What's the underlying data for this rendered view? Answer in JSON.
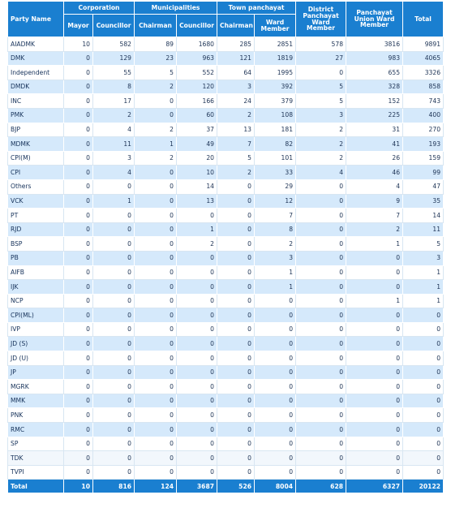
{
  "headers": {
    "party_name": "Party Name",
    "corporation": "Corporation",
    "municipalities": "Municipalities",
    "town_panchayat": "Town panchayat",
    "district_panchayat": "District Panchayat Ward Member",
    "panchayat_union": "Panchayat Union Ward Member",
    "total": "Total",
    "mayor": "Mayor",
    "councillor_corp": "Councillor",
    "chairman_muni": "Chairman",
    "councillor_muni": "Councillor",
    "chairman_town": "Chairman",
    "ward_member_town": "Ward Member"
  },
  "rows": [
    {
      "party": "AIADMK",
      "v": [
        "10",
        "582",
        "89",
        "1680",
        "285",
        "2851",
        "578",
        "3816",
        "9891"
      ]
    },
    {
      "party": "DMK",
      "v": [
        "0",
        "129",
        "23",
        "963",
        "121",
        "1819",
        "27",
        "983",
        "4065"
      ]
    },
    {
      "party": "Independent",
      "v": [
        "0",
        "55",
        "5",
        "552",
        "64",
        "1995",
        "0",
        "655",
        "3326"
      ]
    },
    {
      "party": "DMDK",
      "v": [
        "0",
        "8",
        "2",
        "120",
        "3",
        "392",
        "5",
        "328",
        "858"
      ]
    },
    {
      "party": "INC",
      "v": [
        "0",
        "17",
        "0",
        "166",
        "24",
        "379",
        "5",
        "152",
        "743"
      ]
    },
    {
      "party": "PMK",
      "v": [
        "0",
        "2",
        "0",
        "60",
        "2",
        "108",
        "3",
        "225",
        "400"
      ]
    },
    {
      "party": "BJP",
      "v": [
        "0",
        "4",
        "2",
        "37",
        "13",
        "181",
        "2",
        "31",
        "270"
      ]
    },
    {
      "party": "MDMK",
      "v": [
        "0",
        "11",
        "1",
        "49",
        "7",
        "82",
        "2",
        "41",
        "193"
      ]
    },
    {
      "party": "CPI(M)",
      "v": [
        "0",
        "3",
        "2",
        "20",
        "5",
        "101",
        "2",
        "26",
        "159"
      ]
    },
    {
      "party": "CPI",
      "v": [
        "0",
        "4",
        "0",
        "10",
        "2",
        "33",
        "4",
        "46",
        "99"
      ]
    },
    {
      "party": "Others",
      "v": [
        "0",
        "0",
        "0",
        "14",
        "0",
        "29",
        "0",
        "4",
        "47"
      ]
    },
    {
      "party": "VCK",
      "v": [
        "0",
        "1",
        "0",
        "13",
        "0",
        "12",
        "0",
        "9",
        "35"
      ]
    },
    {
      "party": "PT",
      "v": [
        "0",
        "0",
        "0",
        "0",
        "0",
        "7",
        "0",
        "7",
        "14"
      ]
    },
    {
      "party": "RJD",
      "v": [
        "0",
        "0",
        "0",
        "1",
        "0",
        "8",
        "0",
        "2",
        "11"
      ]
    },
    {
      "party": "BSP",
      "v": [
        "0",
        "0",
        "0",
        "2",
        "0",
        "2",
        "0",
        "1",
        "5"
      ]
    },
    {
      "party": "PB",
      "v": [
        "0",
        "0",
        "0",
        "0",
        "0",
        "3",
        "0",
        "0",
        "3"
      ]
    },
    {
      "party": "AIFB",
      "v": [
        "0",
        "0",
        "0",
        "0",
        "0",
        "1",
        "0",
        "0",
        "1"
      ]
    },
    {
      "party": "IJK",
      "v": [
        "0",
        "0",
        "0",
        "0",
        "0",
        "1",
        "0",
        "0",
        "1"
      ]
    },
    {
      "party": "NCP",
      "v": [
        "0",
        "0",
        "0",
        "0",
        "0",
        "0",
        "0",
        "1",
        "1"
      ]
    },
    {
      "party": "CPI(ML)",
      "v": [
        "0",
        "0",
        "0",
        "0",
        "0",
        "0",
        "0",
        "0",
        "0"
      ]
    },
    {
      "party": "IVP",
      "v": [
        "0",
        "0",
        "0",
        "0",
        "0",
        "0",
        "0",
        "0",
        "0"
      ]
    },
    {
      "party": "JD (S)",
      "v": [
        "0",
        "0",
        "0",
        "0",
        "0",
        "0",
        "0",
        "0",
        "0"
      ]
    },
    {
      "party": "JD (U)",
      "v": [
        "0",
        "0",
        "0",
        "0",
        "0",
        "0",
        "0",
        "0",
        "0"
      ]
    },
    {
      "party": "JP",
      "v": [
        "0",
        "0",
        "0",
        "0",
        "0",
        "0",
        "0",
        "0",
        "0"
      ]
    },
    {
      "party": "MGRK",
      "v": [
        "0",
        "0",
        "0",
        "0",
        "0",
        "0",
        "0",
        "0",
        "0"
      ]
    },
    {
      "party": "MMK",
      "v": [
        "0",
        "0",
        "0",
        "0",
        "0",
        "0",
        "0",
        "0",
        "0"
      ]
    },
    {
      "party": "PNK",
      "v": [
        "0",
        "0",
        "0",
        "0",
        "0",
        "0",
        "0",
        "0",
        "0"
      ]
    },
    {
      "party": "RMC",
      "v": [
        "0",
        "0",
        "0",
        "0",
        "0",
        "0",
        "0",
        "0",
        "0"
      ]
    },
    {
      "party": "SP",
      "v": [
        "0",
        "0",
        "0",
        "0",
        "0",
        "0",
        "0",
        "0",
        "0"
      ]
    },
    {
      "party": "TDK",
      "v": [
        "0",
        "0",
        "0",
        "0",
        "0",
        "0",
        "0",
        "0",
        "0"
      ]
    },
    {
      "party": "TVPI",
      "v": [
        "0",
        "0",
        "0",
        "0",
        "0",
        "0",
        "0",
        "0",
        "0"
      ]
    }
  ],
  "total_row": {
    "label": "Total",
    "v": [
      "10",
      "816",
      "124",
      "3687",
      "526",
      "8004",
      "628",
      "6327",
      "20122"
    ]
  }
}
